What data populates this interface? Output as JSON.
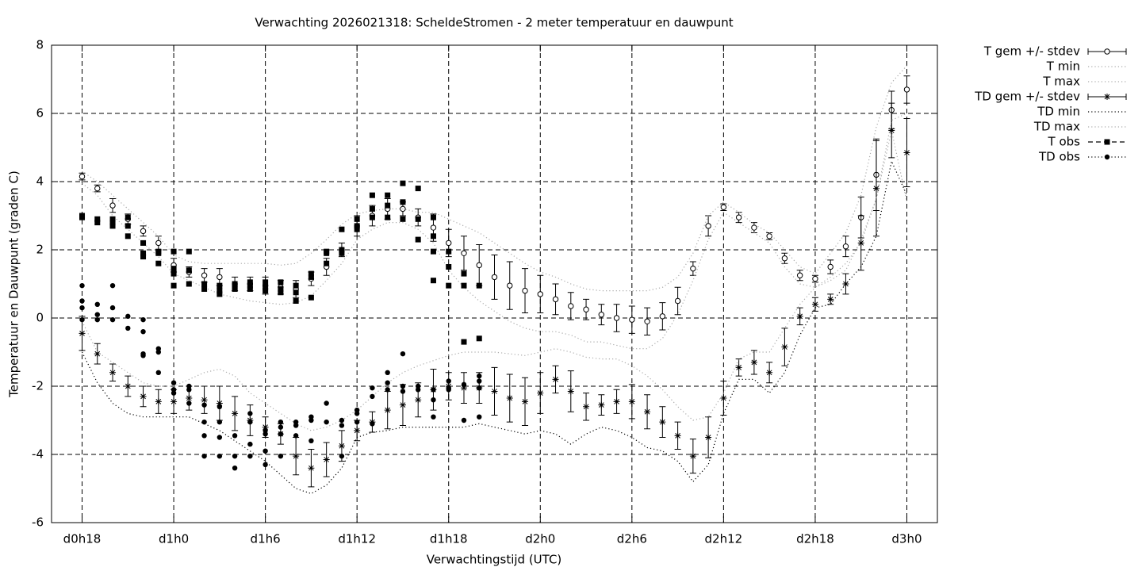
{
  "chart_data": {
    "type": "errorbar",
    "title": "Verwachting 2026021318: ScheldeStromen - 2 meter temperatuur en dauwpunt",
    "xlabel": "Verwachtingstijd (UTC)",
    "ylabel": "Temperatuur en Dauwpunt (graden C)",
    "xlim": [
      -2,
      56
    ],
    "ylim": [
      -6,
      8
    ],
    "xticks": [
      {
        "value": 0,
        "label": "d0h18"
      },
      {
        "value": 6,
        "label": "d1h0"
      },
      {
        "value": 12,
        "label": "d1h6"
      },
      {
        "value": 18,
        "label": "d1h12"
      },
      {
        "value": 24,
        "label": "d1h18"
      },
      {
        "value": 30,
        "label": "d2h0"
      },
      {
        "value": 36,
        "label": "d2h6"
      },
      {
        "value": 42,
        "label": "d2h12"
      },
      {
        "value": 48,
        "label": "d2h18"
      },
      {
        "value": 54,
        "label": "d3h0"
      }
    ],
    "yticks": [
      -6,
      -4,
      -2,
      0,
      2,
      4,
      6,
      8
    ],
    "grid": true,
    "legend": "outside-right-top",
    "x": [
      0,
      1,
      2,
      3,
      4,
      5,
      6,
      7,
      8,
      9,
      10,
      11,
      12,
      13,
      14,
      15,
      16,
      17,
      18,
      19,
      20,
      21,
      22,
      23,
      24,
      25,
      26,
      27,
      28,
      29,
      30,
      31,
      32,
      33,
      34,
      35,
      36,
      37,
      38,
      39,
      40,
      41,
      42,
      43,
      44,
      45,
      46,
      47,
      48,
      49,
      50,
      51,
      52,
      53,
      54
    ],
    "series": [
      {
        "name": "T gem +/- stdev",
        "style": "errorbar",
        "marker": "circle",
        "color": "#000000",
        "values": [
          4.15,
          3.8,
          3.3,
          2.9,
          2.55,
          2.2,
          1.55,
          1.35,
          1.25,
          1.2,
          1.0,
          1.0,
          0.95,
          0.9,
          0.85,
          1.15,
          1.5,
          2.0,
          2.7,
          3.0,
          3.2,
          3.2,
          2.95,
          2.65,
          2.2,
          1.9,
          1.55,
          1.2,
          0.95,
          0.8,
          0.7,
          0.55,
          0.35,
          0.25,
          0.1,
          0.0,
          -0.05,
          -0.1,
          0.05,
          0.5,
          1.45,
          2.7,
          3.25,
          2.95,
          2.65,
          2.4,
          1.75,
          1.25,
          1.15,
          1.5,
          2.1,
          2.95,
          4.2,
          6.1,
          6.7
        ],
        "errors": [
          0.1,
          0.1,
          0.2,
          0.15,
          0.15,
          0.2,
          0.2,
          0.15,
          0.2,
          0.25,
          0.2,
          0.2,
          0.25,
          0.2,
          0.25,
          0.2,
          0.25,
          0.2,
          0.3,
          0.3,
          0.3,
          0.2,
          0.25,
          0.4,
          0.4,
          0.5,
          0.6,
          0.65,
          0.7,
          0.65,
          0.55,
          0.45,
          0.4,
          0.3,
          0.3,
          0.4,
          0.4,
          0.4,
          0.4,
          0.4,
          0.2,
          0.3,
          0.1,
          0.15,
          0.15,
          0.1,
          0.15,
          0.15,
          0.1,
          0.2,
          0.3,
          0.6,
          1.05,
          0.55,
          0.4
        ]
      },
      {
        "name": "T min",
        "style": "line",
        "dash": "dotted",
        "color": "#aaaaaa",
        "values": [
          3.95,
          3.6,
          3.0,
          2.6,
          2.2,
          1.8,
          1.3,
          1.1,
          0.9,
          0.7,
          0.6,
          0.5,
          0.45,
          0.4,
          0.45,
          0.65,
          1.1,
          1.6,
          2.3,
          2.6,
          2.8,
          2.8,
          2.6,
          2.2,
          1.4,
          0.9,
          0.5,
          0.2,
          -0.1,
          -0.3,
          -0.4,
          -0.4,
          -0.5,
          -0.7,
          -0.7,
          -0.8,
          -0.9,
          -0.9,
          -0.6,
          0.1,
          1.1,
          2.3,
          3.1,
          2.8,
          2.5,
          2.2,
          1.5,
          1.0,
          0.9,
          1.2,
          1.6,
          2.2,
          3.5,
          5.5,
          3.4
        ]
      },
      {
        "name": "T max",
        "style": "line",
        "dash": "dotted",
        "color": "#aaaaaa",
        "values": [
          4.3,
          4.0,
          3.6,
          3.2,
          2.8,
          2.4,
          1.85,
          1.65,
          1.6,
          1.6,
          1.6,
          1.6,
          1.6,
          1.55,
          1.6,
          1.9,
          2.3,
          2.75,
          3.05,
          3.15,
          3.2,
          3.2,
          3.1,
          3.1,
          2.9,
          2.7,
          2.5,
          2.2,
          1.9,
          1.6,
          1.35,
          1.2,
          1.0,
          0.85,
          0.8,
          0.8,
          0.8,
          0.8,
          0.9,
          1.2,
          1.9,
          3.0,
          3.4,
          3.1,
          2.75,
          2.5,
          2.0,
          1.5,
          1.3,
          1.9,
          2.5,
          3.6,
          5.6,
          6.9,
          7.4
        ]
      },
      {
        "name": "TD gem +/- stdev",
        "style": "errorbar",
        "marker": "star",
        "color": "#000000",
        "values": [
          -0.45,
          -1.05,
          -1.6,
          -2.0,
          -2.3,
          -2.45,
          -2.45,
          -2.35,
          -2.4,
          -2.5,
          -2.8,
          -3.0,
          -3.2,
          -3.4,
          -4.05,
          -4.4,
          -4.15,
          -3.75,
          -3.3,
          -3.05,
          -2.7,
          -2.55,
          -2.4,
          -2.1,
          -2.0,
          -2.05,
          -2.05,
          -2.15,
          -2.35,
          -2.45,
          -2.2,
          -1.8,
          -2.15,
          -2.6,
          -2.55,
          -2.45,
          -2.45,
          -2.75,
          -3.05,
          -3.45,
          -4.05,
          -3.5,
          -2.35,
          -1.45,
          -1.3,
          -1.6,
          -0.85,
          0.05,
          0.4,
          0.55,
          1.0,
          2.2,
          3.8,
          5.5,
          4.85
        ],
        "errors": [
          0.5,
          0.3,
          0.25,
          0.3,
          0.3,
          0.35,
          0.35,
          0.35,
          0.4,
          0.5,
          0.5,
          0.45,
          0.3,
          0.3,
          0.55,
          0.55,
          0.5,
          0.45,
          0.3,
          0.3,
          0.55,
          0.6,
          0.5,
          0.6,
          0.4,
          0.45,
          0.45,
          0.7,
          0.7,
          0.7,
          0.6,
          0.4,
          0.6,
          0.4,
          0.3,
          0.35,
          0.5,
          0.5,
          0.45,
          0.4,
          0.5,
          0.6,
          0.5,
          0.25,
          0.35,
          0.3,
          0.55,
          0.25,
          0.2,
          0.15,
          0.3,
          0.8,
          1.4,
          0.8,
          1.0
        ]
      },
      {
        "name": "TD min",
        "style": "line",
        "dash": "dotted",
        "color": "#000000",
        "values": [
          -1.0,
          -1.9,
          -2.5,
          -2.8,
          -2.9,
          -2.9,
          -2.9,
          -2.9,
          -3.1,
          -3.3,
          -3.6,
          -3.9,
          -4.2,
          -4.6,
          -5.0,
          -5.15,
          -4.9,
          -4.4,
          -3.5,
          -3.35,
          -3.3,
          -3.2,
          -3.2,
          -3.2,
          -3.2,
          -3.2,
          -3.1,
          -3.2,
          -3.3,
          -3.4,
          -3.3,
          -3.4,
          -3.7,
          -3.4,
          -3.2,
          -3.3,
          -3.5,
          -3.8,
          -3.9,
          -4.2,
          -4.8,
          -4.3,
          -2.8,
          -1.8,
          -1.8,
          -2.2,
          -1.6,
          -0.5,
          0.3,
          0.4,
          1.0,
          1.5,
          2.4,
          4.6,
          3.6
        ]
      },
      {
        "name": "TD max",
        "style": "line",
        "dash": "dotted",
        "color": "#aaaaaa",
        "values": [
          -0.1,
          -1.0,
          -1.3,
          -1.6,
          -1.9,
          -2.0,
          -2.0,
          -1.8,
          -1.6,
          -1.5,
          -1.7,
          -2.2,
          -2.5,
          -2.8,
          -3.1,
          -3.3,
          -3.2,
          -3.0,
          -2.7,
          -2.3,
          -1.9,
          -1.6,
          -1.4,
          -1.25,
          -1.1,
          -1.0,
          -1.0,
          -1.0,
          -1.05,
          -1.1,
          -1.0,
          -0.9,
          -1.0,
          -1.15,
          -1.2,
          -1.2,
          -1.4,
          -1.7,
          -2.1,
          -2.6,
          -3.0,
          -2.9,
          -2.2,
          -1.2,
          -1.0,
          -1.0,
          -0.3,
          0.4,
          0.9,
          1.1,
          1.4,
          2.3,
          3.5,
          5.8,
          6.0
        ]
      },
      {
        "name": "T obs",
        "style": "points",
        "marker": "square",
        "dash": "dashed",
        "color": "#000000",
        "x": [
          0,
          0,
          1,
          1,
          2,
          2,
          2,
          3,
          3,
          3,
          4,
          4,
          4,
          5,
          5,
          5,
          6,
          6,
          6,
          6,
          7,
          7,
          7,
          8,
          8,
          9,
          9,
          9,
          10,
          10,
          10,
          11,
          11,
          11,
          12,
          12,
          12,
          13,
          13,
          13,
          14,
          14,
          14,
          15,
          15,
          15,
          16,
          16,
          16,
          17,
          17,
          17,
          18,
          18,
          18,
          19,
          19,
          19,
          20,
          20,
          20,
          21,
          21,
          21,
          22,
          22,
          22,
          23,
          23,
          23,
          23,
          24,
          24,
          24,
          25,
          25,
          25,
          26,
          26
        ],
        "values": [
          3.0,
          2.95,
          2.9,
          2.8,
          2.9,
          2.8,
          2.7,
          2.95,
          2.7,
          2.4,
          2.2,
          1.9,
          1.8,
          1.95,
          1.9,
          1.6,
          1.95,
          1.45,
          1.3,
          0.95,
          1.95,
          1.4,
          1.0,
          1.0,
          0.85,
          0.95,
          0.8,
          0.7,
          1.0,
          0.9,
          0.85,
          1.05,
          0.95,
          0.85,
          1.05,
          0.9,
          0.8,
          1.05,
          0.85,
          0.75,
          0.95,
          0.75,
          0.5,
          1.3,
          1.2,
          0.6,
          1.95,
          1.6,
          1.9,
          2.6,
          2.0,
          1.9,
          2.9,
          2.7,
          2.6,
          3.6,
          3.2,
          2.95,
          3.6,
          3.3,
          2.95,
          3.95,
          3.4,
          2.9,
          3.8,
          2.9,
          2.3,
          2.95,
          2.4,
          1.95,
          1.1,
          1.95,
          1.5,
          0.95,
          1.3,
          0.95,
          -0.7,
          0.95,
          -0.6
        ]
      },
      {
        "name": "TD obs",
        "style": "points",
        "marker": "dot",
        "dash": "dotted",
        "color": "#000000",
        "x": [
          0,
          0,
          0,
          0,
          1,
          1,
          1,
          2,
          2,
          2,
          3,
          3,
          4,
          4,
          4,
          4,
          5,
          5,
          5,
          6,
          6,
          6,
          7,
          7,
          7,
          8,
          8,
          8,
          8,
          9,
          9,
          9,
          9,
          10,
          10,
          10,
          11,
          11,
          11,
          11,
          12,
          12,
          12,
          12,
          13,
          13,
          13,
          13,
          14,
          14,
          14,
          15,
          15,
          15,
          16,
          16,
          17,
          17,
          17,
          18,
          18,
          18,
          19,
          19,
          19,
          20,
          20,
          20,
          21,
          21,
          21,
          22,
          22,
          23,
          23,
          23,
          24,
          24,
          24,
          25,
          25,
          26,
          26,
          26,
          26
        ],
        "values": [
          0.95,
          0.5,
          0.3,
          -0.05,
          0.4,
          0.1,
          -0.05,
          0.95,
          0.3,
          -0.05,
          0.05,
          -0.3,
          -0.05,
          -0.4,
          -1.05,
          -1.1,
          -0.9,
          -1.0,
          -1.6,
          -1.9,
          -2.1,
          -2.2,
          -2.0,
          -2.1,
          -2.5,
          -2.55,
          -3.05,
          -3.45,
          -4.05,
          -2.6,
          -3.05,
          -3.5,
          -4.05,
          -3.45,
          -4.05,
          -4.4,
          -2.8,
          -3.05,
          -3.7,
          -4.05,
          -3.3,
          -3.4,
          -3.9,
          -4.3,
          -3.05,
          -3.2,
          -3.4,
          -4.05,
          -3.05,
          -3.15,
          -3.45,
          -2.9,
          -3.0,
          -3.6,
          -2.5,
          -3.05,
          -3.0,
          -3.15,
          -4.05,
          -2.7,
          -2.8,
          -3.05,
          -2.05,
          -2.3,
          -3.1,
          -1.6,
          -1.9,
          -2.1,
          -1.05,
          -2.0,
          -2.15,
          -2.0,
          -2.1,
          -2.1,
          -2.4,
          -2.9,
          -1.85,
          -2.05,
          -2.1,
          -1.95,
          -3.0,
          -1.7,
          -1.85,
          -2.05,
          -2.9
        ]
      }
    ]
  }
}
